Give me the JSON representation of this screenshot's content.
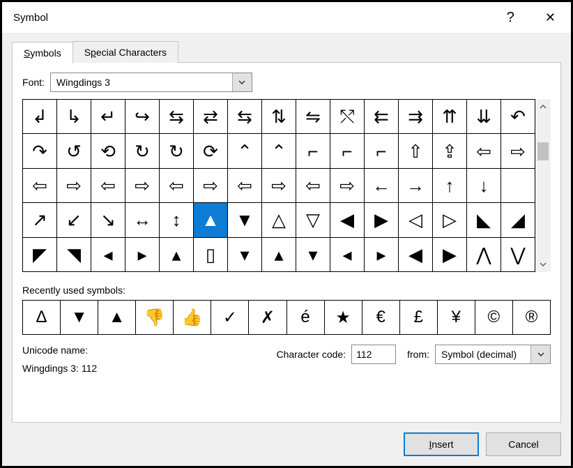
{
  "window": {
    "title": "Symbol"
  },
  "tabs": [
    {
      "label": "Symbols",
      "underline_first": true,
      "active": true
    },
    {
      "label": "Special Characters",
      "underline_char": "p",
      "active": false
    }
  ],
  "font": {
    "label": "Font:",
    "underline_first": true,
    "value": "Wingdings 3"
  },
  "grid": {
    "cols": 15,
    "rows": 5,
    "selected_index": 50,
    "cells": [
      "↲",
      "↳",
      "↵",
      "↪",
      "⇆",
      "⇄",
      "⇆",
      "⇅",
      "⇋",
      "⤲",
      "⇇",
      "⇉",
      "⇈",
      "⇊",
      "↶",
      "↷",
      "↺",
      "⟲",
      "↻",
      "↻",
      "⟳",
      "⌃",
      "⌃",
      "⌐",
      "⌐",
      "⌐",
      "⇧",
      "⇪",
      "⇦",
      "⇨",
      "⇦",
      "⇨",
      "⇦",
      "⇨",
      "⇦",
      "⇨",
      "⇦",
      "⇨",
      "⇦",
      "⇨",
      "←",
      "→",
      "↑",
      "↓",
      "",
      "↗",
      "↙",
      "↘",
      "↔",
      "↕",
      "▲",
      "▼",
      "△",
      "▽",
      "◀",
      "▶",
      "◁",
      "▷",
      "◣",
      "◢",
      "◤",
      "◥",
      "◂",
      "▸",
      "▴",
      "▯",
      "▾",
      "▴",
      "▾",
      "◂",
      "▸",
      "◀",
      "▶",
      "⋀",
      "⋁"
    ]
  },
  "recent": {
    "label": "Recently used symbols:",
    "underline_first": true,
    "cells": [
      "Δ",
      "▼",
      "▲",
      "👎",
      "👍",
      "✓",
      "✗",
      "é",
      "★",
      "€",
      "£",
      "¥",
      "©",
      "®"
    ],
    "trailing": "™"
  },
  "unicode": {
    "label": "Unicode name:",
    "detail": "Wingdings 3: 112"
  },
  "charcode": {
    "label": "Character code:",
    "underline_first": true,
    "value": "112"
  },
  "from": {
    "label": "from:",
    "underline_char": "m",
    "value": "Symbol (decimal)"
  },
  "buttons": {
    "insert": "Insert",
    "cancel": "Cancel"
  },
  "colors": {
    "selection": "#0c7cd5",
    "panel_bg": "#f0f0f0",
    "border": "#c5c5c5"
  }
}
